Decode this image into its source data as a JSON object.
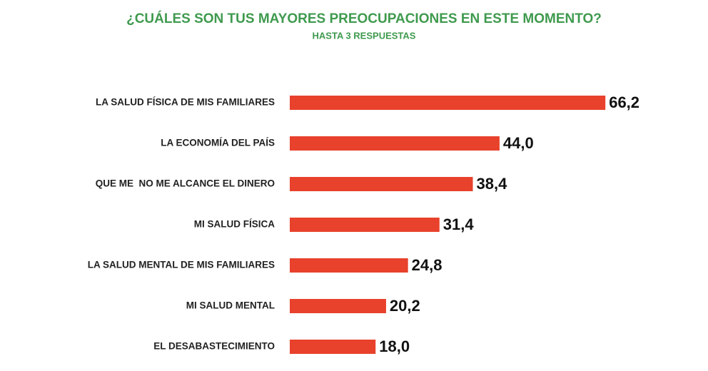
{
  "chart_data": {
    "type": "bar",
    "orientation": "horizontal",
    "title": "¿CUÁLES SON TUS MAYORES PREOCUPACIONES EN ESTE MOMENTO?",
    "subtitle": "HASTA 3 RESPUESTAS",
    "categories": [
      "LA SALUD FÍSICA DE MIS FAMILIARES",
      "LA ECONOMÍA DEL PAÍS",
      "QUE ME  NO ME ALCANCE EL DINERO",
      "MI SALUD FÍSICA",
      "LA SALUD MENTAL DE MIS FAMILIARES",
      "MI SALUD MENTAL",
      "EL DESABASTECIMIENTO"
    ],
    "values": [
      66.2,
      44.0,
      38.4,
      31.4,
      24.8,
      20.2,
      18.0
    ],
    "value_labels": [
      "66,2",
      "44,0",
      "38,4",
      "31,4",
      "24,8",
      "20,2",
      "18,0"
    ],
    "color": "#e8412c"
  }
}
